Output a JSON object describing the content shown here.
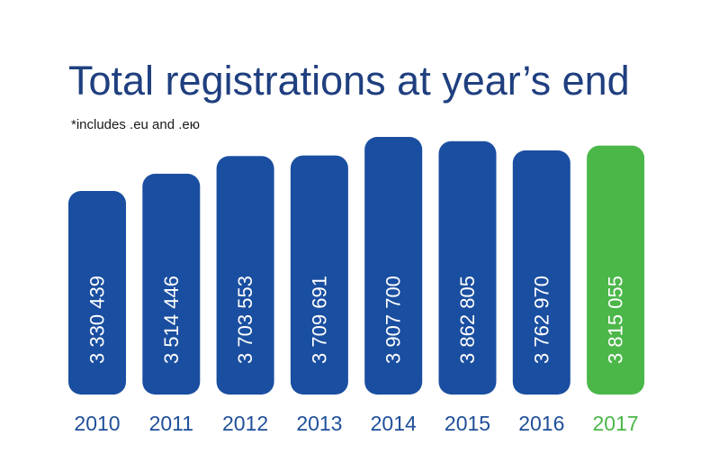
{
  "chart_data": {
    "type": "bar",
    "title": "Total registrations at year’s end",
    "subtitle": "*includes .eu and .ею",
    "categories": [
      "2010",
      "2011",
      "2012",
      "2013",
      "2014",
      "2015",
      "2016",
      "2017"
    ],
    "values": [
      3330439,
      3514446,
      3703553,
      3709691,
      3907700,
      3862805,
      3762970,
      3815055
    ],
    "value_labels": [
      "3 330 439",
      "3 514 446",
      "3 703 553",
      "3 709 691",
      "3 907 700",
      "3 862 805",
      "3 762 970",
      "3 815 055"
    ],
    "colors": {
      "default_bar": "#1a4ea0",
      "highlight_bar": "#4bb749",
      "default_label": "#1f4f99",
      "highlight_label": "#4bb749",
      "value_text": "#ffffff",
      "title": "#1f3f7f"
    },
    "highlight_index": 7,
    "grid": false,
    "legend": "none",
    "axes_visible": false
  }
}
